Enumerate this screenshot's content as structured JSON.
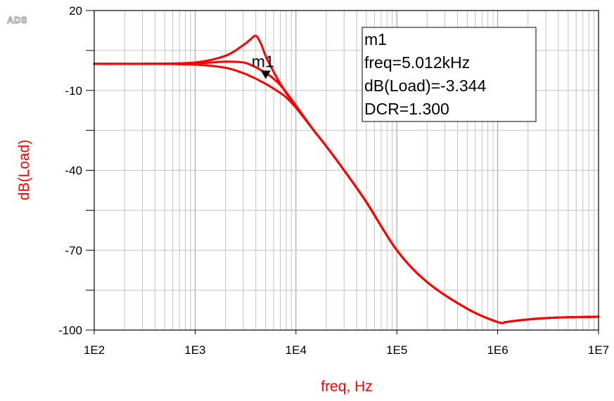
{
  "logo": "ADS",
  "chart_data": {
    "type": "line",
    "xlabel": "freq, Hz",
    "ylabel": "dB(Load)",
    "x_scale": "log",
    "xlim": [
      100,
      10000000
    ],
    "ylim": [
      -100,
      20
    ],
    "x_ticks": [
      100,
      1000,
      10000,
      100000,
      1000000,
      10000000
    ],
    "x_tick_labels": [
      "1E2",
      "1E3",
      "1E4",
      "1E5",
      "1E6",
      "1E7"
    ],
    "y_ticks": [
      20,
      -10,
      -40,
      -70,
      -100
    ],
    "y_tick_labels": [
      "20",
      "-10",
      "-40",
      "-70",
      "-100"
    ],
    "y_minor_ticks": [
      5,
      -25,
      -55,
      -85
    ],
    "grid": true,
    "line_color": "#ff0000",
    "series": [
      {
        "x": [
          100,
          300,
          1000,
          2000,
          3000,
          3500,
          4000,
          4500,
          5000,
          6000,
          7000,
          8000,
          10000,
          15000,
          20000,
          30000,
          50000,
          100000,
          200000,
          500000,
          1000000,
          1200000,
          1500000,
          2000000,
          3000000,
          5000000,
          10000000
        ],
        "y": [
          0,
          0,
          0.5,
          3,
          7,
          9,
          10.5,
          7.5,
          3,
          -3,
          -7.5,
          -11,
          -16,
          -25,
          -31,
          -40,
          -52,
          -70,
          -82,
          -92,
          -97,
          -97,
          -96.5,
          -96,
          -95.5,
          -95.2,
          -95
        ]
      },
      {
        "x": [
          100,
          300,
          1000,
          2000,
          3000,
          3500,
          4000,
          4500,
          5000,
          6000,
          7000,
          8000,
          10000,
          15000,
          20000,
          30000,
          50000,
          100000,
          200000,
          500000,
          1000000,
          1200000,
          1500000,
          2000000,
          3000000,
          5000000,
          10000000
        ],
        "y": [
          0,
          0,
          0.2,
          0.8,
          0.5,
          -0.3,
          -1.3,
          -2.4,
          -3.344,
          -5.6,
          -8,
          -10.7,
          -15.7,
          -25,
          -31,
          -40,
          -52,
          -70,
          -82,
          -92,
          -97,
          -97,
          -96.5,
          -96,
          -95.5,
          -95.2,
          -95
        ]
      },
      {
        "x": [
          100,
          300,
          1000,
          2000,
          3000,
          3500,
          4000,
          4500,
          5000,
          6000,
          7000,
          8000,
          10000,
          15000,
          20000,
          30000,
          50000,
          100000,
          200000,
          500000,
          1000000,
          1200000,
          1500000,
          2000000,
          3000000,
          5000000,
          10000000
        ],
        "y": [
          0,
          0,
          -0.3,
          -1.5,
          -3.5,
          -4.6,
          -5.6,
          -6.6,
          -7.5,
          -9.3,
          -11,
          -12.6,
          -16.5,
          -25,
          -31,
          -40,
          -52,
          -70,
          -82,
          -92,
          -97,
          -97,
          -96.5,
          -96,
          -95.5,
          -95.2,
          -95
        ]
      }
    ],
    "marker": {
      "name": "m1",
      "x": 5012,
      "y": -3.344,
      "readout": [
        "m1",
        "freq=5.012kHz",
        "dB(Load)=-3.344",
        "DCR=1.300"
      ]
    }
  }
}
